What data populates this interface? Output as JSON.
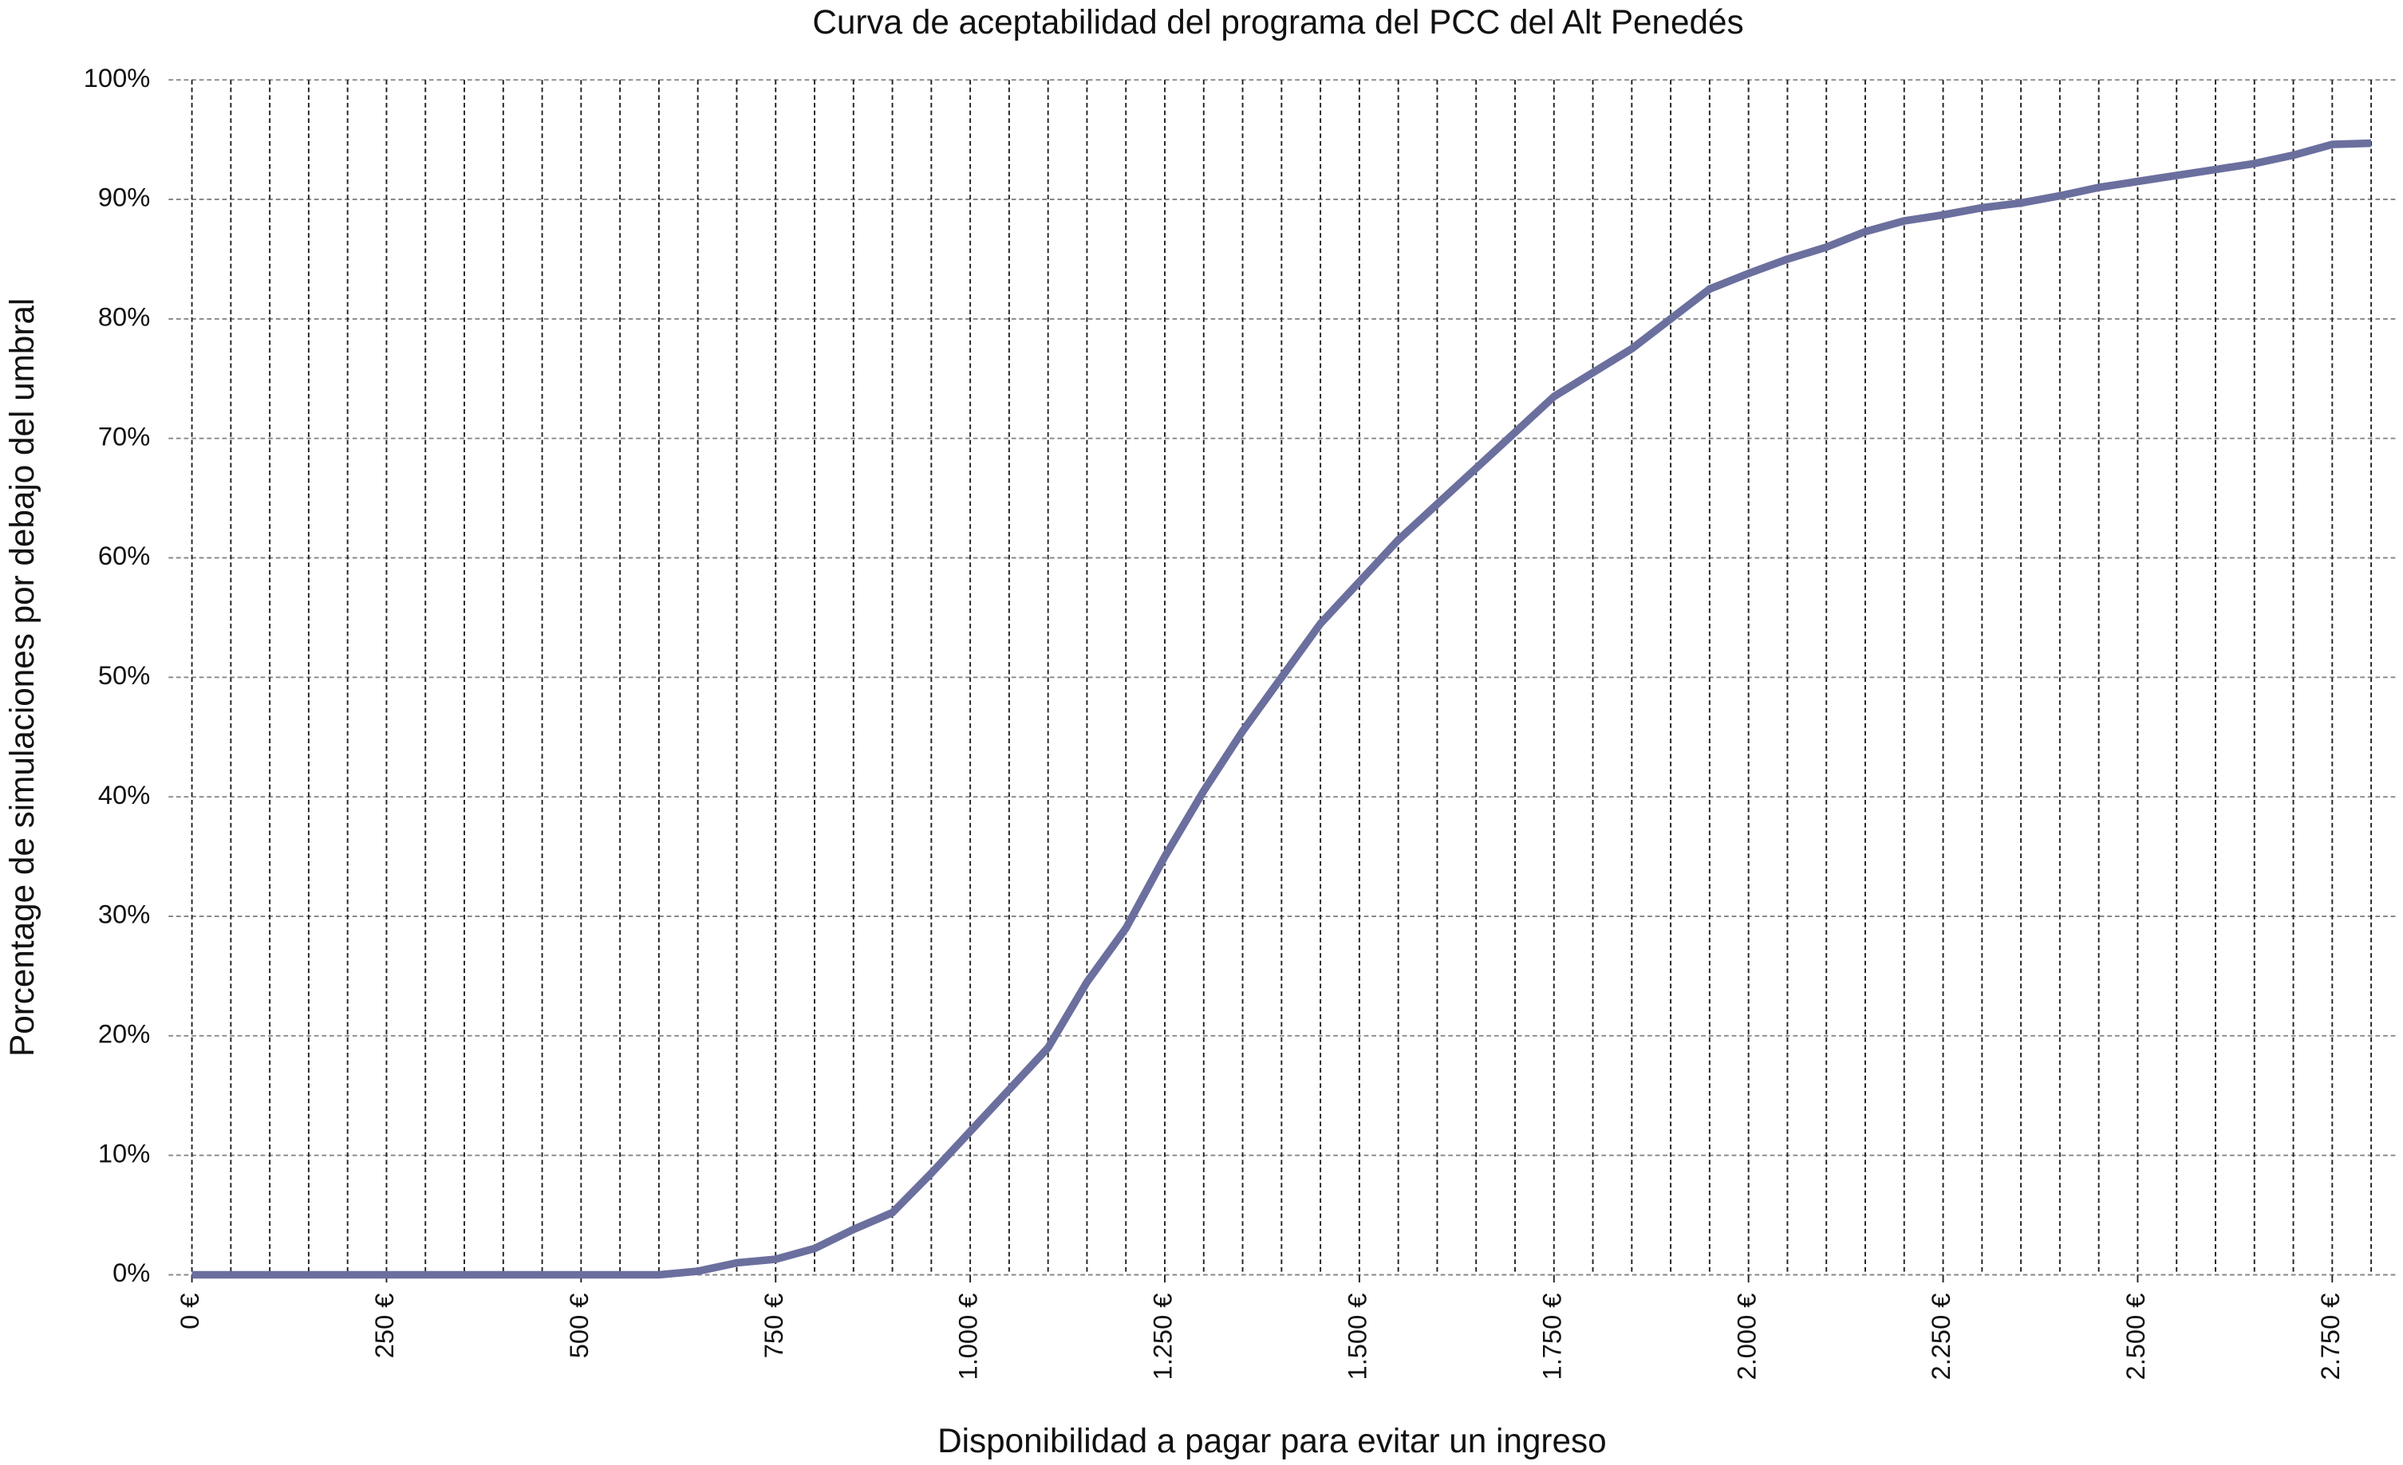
{
  "chart_data": {
    "type": "line",
    "title": "Curva de aceptabilidad del programa del PCC del Alt Penedés",
    "x_label": "Disponibilidad a pagar para evitar un ingreso",
    "y_label": "Porcentage de simulaciones por debajo del umbral",
    "x": [
      0,
      50,
      100,
      150,
      200,
      250,
      300,
      350,
      400,
      450,
      500,
      550,
      600,
      650,
      700,
      750,
      800,
      850,
      900,
      950,
      1000,
      1050,
      1100,
      1150,
      1200,
      1250,
      1300,
      1350,
      1400,
      1450,
      1500,
      1550,
      1600,
      1650,
      1700,
      1750,
      1800,
      1850,
      1900,
      1950,
      2000,
      2050,
      2100,
      2150,
      2200,
      2250,
      2300,
      2350,
      2400,
      2450,
      2500,
      2550,
      2600,
      2650,
      2700,
      2750,
      2800
    ],
    "series": [
      {
        "color": "#6b6f9e",
        "values": [
          0,
          0,
          0,
          0,
          0,
          0,
          0,
          0,
          0,
          0,
          0,
          0,
          0,
          0.3,
          1.0,
          1.3,
          2.2,
          3.8,
          5.2,
          8.5,
          12,
          15.5,
          19,
          24.5,
          29,
          35,
          40.5,
          45.5,
          50,
          54.5,
          58,
          61.5,
          64.5,
          67.5,
          70.5,
          73.5,
          75.5,
          77.5,
          80,
          82.5,
          83.8,
          85,
          86,
          87.3,
          88.2,
          88.7,
          89.3,
          89.7,
          90.3,
          91,
          91.5,
          92,
          92.5,
          93,
          93.7,
          94.6,
          94.7
        ]
      }
    ],
    "xlim": [
      -30,
      2835
    ],
    "ylim": [
      0,
      100
    ],
    "xticks": [
      {
        "value": 0,
        "label": "0 €"
      },
      {
        "value": 250,
        "label": "250 €"
      },
      {
        "value": 500,
        "label": "500 €"
      },
      {
        "value": 750,
        "label": "750 €"
      },
      {
        "value": 1000,
        "label": "1.000 €"
      },
      {
        "value": 1250,
        "label": "1.250 €"
      },
      {
        "value": 1500,
        "label": "1.500 €"
      },
      {
        "value": 1750,
        "label": "1.750 €"
      },
      {
        "value": 2000,
        "label": "2.000 €"
      },
      {
        "value": 2250,
        "label": "2.250 €"
      },
      {
        "value": 2500,
        "label": "2.500 €"
      },
      {
        "value": 2750,
        "label": "2.750 €"
      }
    ],
    "minor_xticks": [
      0,
      50,
      100,
      150,
      200,
      250,
      300,
      350,
      400,
      450,
      500,
      550,
      600,
      650,
      700,
      750,
      800,
      850,
      900,
      950,
      1000,
      1050,
      1100,
      1150,
      1200,
      1250,
      1300,
      1350,
      1400,
      1450,
      1500,
      1550,
      1600,
      1650,
      1700,
      1750,
      1800,
      1850,
      1900,
      1950,
      2000,
      2050,
      2100,
      2150,
      2200,
      2250,
      2300,
      2350,
      2400,
      2450,
      2500,
      2550,
      2600,
      2650,
      2700,
      2750,
      2800
    ],
    "yticks": [
      {
        "value": 0,
        "label": "0%"
      },
      {
        "value": 10,
        "label": "10%"
      },
      {
        "value": 20,
        "label": "20%"
      },
      {
        "value": 30,
        "label": "30%"
      },
      {
        "value": 40,
        "label": "40%"
      },
      {
        "value": 50,
        "label": "50%"
      },
      {
        "value": 60,
        "label": "60%"
      },
      {
        "value": 70,
        "label": "70%"
      },
      {
        "value": 80,
        "label": "80%"
      },
      {
        "value": 90,
        "label": "90%"
      },
      {
        "value": 100,
        "label": "100%"
      }
    ],
    "grid": true
  }
}
